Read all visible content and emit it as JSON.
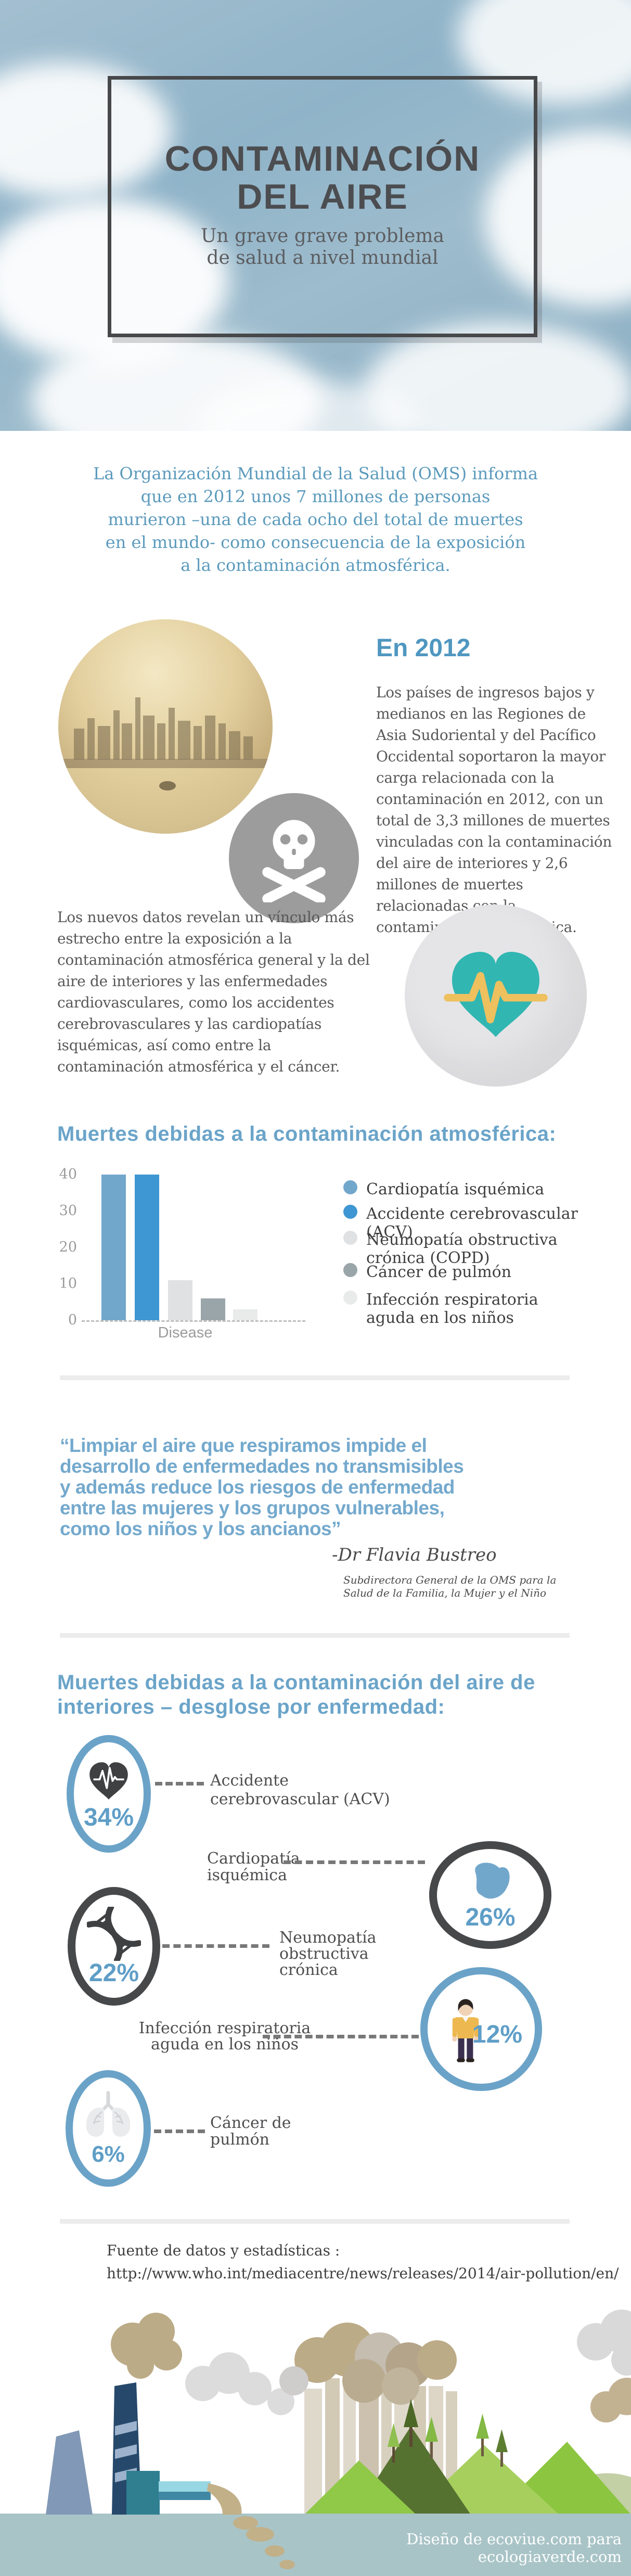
{
  "palette": {
    "accent_blue": "#6ba4c9",
    "intro_blue": "#5b9abc",
    "bright_blue": "#3e96d2",
    "muted_blue": "#72a7cc",
    "text_gray": "#58585a",
    "text_dark": "#4e4e50",
    "ring_dark": "#47484a",
    "ring_blue": "#6ba3c8",
    "teal": "#31b6b2",
    "amber": "#eec05e",
    "divider_gray": "#ececec",
    "water": "#a9c4c7"
  },
  "header": {
    "title_line1": "CONTAMINACIÓN",
    "title_line2": "DEL AIRE",
    "subtitle_line1": "Un grave grave problema",
    "subtitle_line2": "de salud a nivel mundial"
  },
  "intro": {
    "lines": [
      "La Organización Mundial de la Salud (OMS) informa",
      "que en 2012 unos 7 millones de personas",
      "murieron –una de cada ocho del total de muertes",
      "en el mundo- como consecuencia de la exposición",
      "a la contaminación atmosférica."
    ]
  },
  "en2012": {
    "heading": "En 2012",
    "body": "Los países de ingresos bajos y medianos en las Regiones de Asia Sudoriental y del Pacífico Occidental soportaron la mayor carga relacionada con la contaminación en 2012, con un total de 3,3 millones de muertes vinculadas con la contaminación del aire de interiores y 2,6 millones de muertes relacionadas con la contaminación atmosférica."
  },
  "cardio": {
    "body": "Los nuevos datos revelan un vínculo más estrecho entre la exposición a la contaminación atmosférica general y la del aire de interiores y las enfermedades cardiovasculares, como los accidentes cerebrovasculares y las cardiopatías isquémicas, así como entre la contaminación atmosférica y el cáncer."
  },
  "chart": {
    "heading": "Muertes debidas a la contaminación atmosférica:"
  },
  "chart_data": {
    "type": "bar",
    "title": "Muertes debidas a la contaminación atmosférica:",
    "xlabel": "Disease",
    "ylabel": "",
    "ylim": [
      0,
      40
    ],
    "yticks": [
      0,
      10,
      20,
      30,
      40
    ],
    "grid": false,
    "legend_position": "right",
    "categories": [
      "Cardiopatía isquémica",
      "Accidente cerebrovascular (ACV)",
      "Neumopatía obstructiva crónica (COPD)",
      "Cáncer de pulmón",
      "Infección respiratoria aguda en los niños"
    ],
    "values": [
      40,
      40,
      11,
      6,
      3
    ],
    "colors": [
      "#72a7cc",
      "#3e96d2",
      "#dfe1e2",
      "#9aa5aa",
      "#e9eaea"
    ]
  },
  "quote": {
    "lines": [
      "“Limpiar el aire que respiramos impide el",
      "desarrollo de enfermedades no transmisibles",
      "y además reduce los riesgos de enfermedad",
      "entre las mujeres y los grupos vulnerables,",
      "como los niños y los ancianos”"
    ],
    "attribution": "-Dr Flavia Bustreo",
    "attribution_role_line1": "Subdirectora General de la OMS para la",
    "attribution_role_line2": "Salud de la Familia, la Mujer y el Niño"
  },
  "breakdown": {
    "heading_line1": "Muertes debidas a la contaminación del aire de",
    "heading_line2": "interiores – desglose por enfermedad:",
    "items": [
      {
        "pct": "34%",
        "line1": "Accidente",
        "line2": "cerebrovascular (ACV)"
      },
      {
        "pct": "26%",
        "line1": "Cardiopatía",
        "line2": "isquémica"
      },
      {
        "pct": "22%",
        "line1": "Neumopatía",
        "line2": "obstructiva",
        "line3": "crónica"
      },
      {
        "pct": "12%",
        "line1": "Infección respiratoria",
        "line2": "aguda en los niños"
      },
      {
        "pct": "6%",
        "line1": "Cáncer de",
        "line2": "pulmón"
      }
    ]
  },
  "source": {
    "label": "Fuente de datos y estadísticas :",
    "url": "http://www.who.int/mediacentre/news/releases/2014/air-pollution/en/"
  },
  "footer": {
    "credit": "Diseño de ecoviue.com para ecologiaverde.com"
  }
}
